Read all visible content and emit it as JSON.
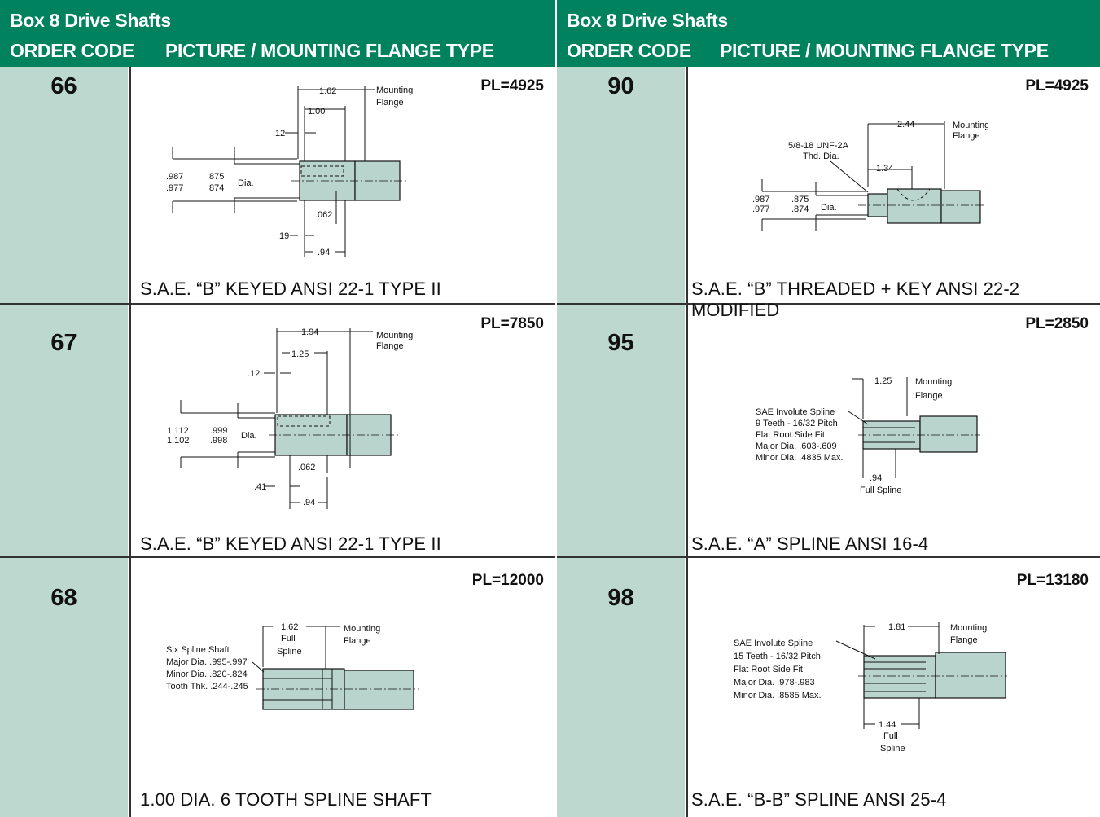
{
  "left_panel": {
    "title": "Box 8  Drive Shafts",
    "col_order": "ORDER CODE",
    "col_picture": "PICTURE / MOUNTING FLANGE TYPE",
    "rows": [
      {
        "code": "66",
        "pl": "PL=4925",
        "caption": "S.A.E. “B” KEYED ANSI 22-1 TYPE II",
        "labels": {
          "d1": "1.62",
          "mount1": "Mounting",
          "mount2": "Flange",
          "d2": "1.00",
          "d3": ".12",
          "a1": ".987",
          "a2": ".977",
          "b1": ".875",
          "b2": ".874",
          "dia": "Dia.",
          "d4": ".062",
          "d5": ".19",
          "d6": ".94"
        }
      },
      {
        "code": "67",
        "pl": "PL=7850",
        "caption": "S.A.E. “B” KEYED ANSI 22-1 TYPE II",
        "labels": {
          "d1": "1.94",
          "mount1": "Mounting",
          "mount2": "Flange",
          "d2": "1.25",
          "d3": ".12",
          "a1": "1.112",
          "a2": "1.102",
          "b1": ".999",
          "b2": ".998",
          "dia": "Dia.",
          "d4": ".062",
          "d5": ".41",
          "d6": ".94"
        }
      },
      {
        "code": "68",
        "pl": "PL=12000",
        "caption": "1.00 DIA. 6 TOOTH SPLINE SHAFT",
        "labels": {
          "d1": "1.62",
          "full": "Full",
          "spline": "Spline",
          "mount1": "Mounting",
          "mount2": "Flange",
          "s1": "Six Spline Shaft",
          "s2": "Major Dia. .995-.997",
          "s3": "Minor Dia. .820-.824",
          "s4": "Tooth Thk. .244-.245"
        }
      }
    ]
  },
  "right_panel": {
    "title": "Box 8  Drive Shafts",
    "col_order": "ORDER CODE",
    "col_picture": "PICTURE / MOUNTING FLANGE TYPE",
    "rows": [
      {
        "code": "90",
        "pl": "PL=4925",
        "caption": "S.A.E. “B” THREADED + KEY ANSI 22-2 MODIFIED",
        "labels": {
          "d1": "2.44",
          "mount1": "Mounting",
          "mount2": "Flange",
          "t1": "5/8-18 UNF-2A",
          "t2": "Thd. Dia.",
          "d2": "1.34",
          "a1": ".987",
          "a2": ".977",
          "b1": ".875",
          "b2": ".874",
          "dia": "Dia."
        }
      },
      {
        "code": "95",
        "pl": "PL=2850",
        "caption": "S.A.E. “A” SPLINE ANSI 16-4",
        "labels": {
          "d1": "1.25",
          "mount1": "Mounting",
          "mount2": "Flange",
          "s1": "SAE Involute Spline",
          "s2": "9 Teeth - 16/32 Pitch",
          "s3": "Flat Root Side Fit",
          "s4": "Major Dia. .603-.609",
          "s5": "Minor Dia. .4835 Max.",
          "d2": ".94",
          "full": "Full Spline"
        }
      },
      {
        "code": "98",
        "pl": "PL=13180",
        "caption": "S.A.E. “B-B” SPLINE ANSI 25-4",
        "labels": {
          "d1": "1.81",
          "mount1": "Mounting",
          "mount2": "Flange",
          "s1": "SAE Involute Spline",
          "s2": "15 Teeth - 16/32 Pitch",
          "s3": "Flat Root Side Fit",
          "s4": "Major Dia. .978-.983",
          "s5": "Minor Dia. .8585 Max.",
          "d2": "1.44",
          "full": "Full",
          "spline": "Spline"
        }
      }
    ]
  }
}
